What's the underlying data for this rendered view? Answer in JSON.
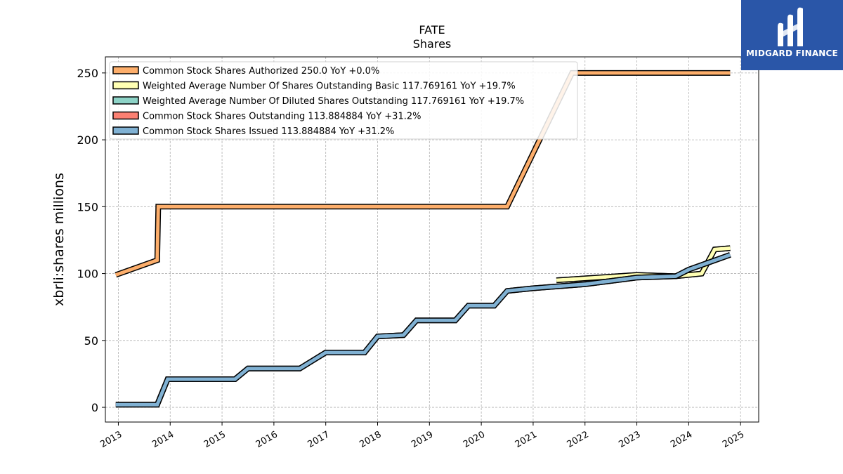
{
  "chart_data": {
    "type": "line",
    "title": "FATE",
    "subtitle": "Shares",
    "ylabel": "xbrli:shares millions",
    "xlabel": "",
    "xlim": [
      2012.75,
      2025.35
    ],
    "ylim": [
      -11,
      262
    ],
    "yticks": [
      0,
      50,
      100,
      150,
      200,
      250
    ],
    "xticks": [
      2013,
      2014,
      2015,
      2016,
      2017,
      2018,
      2019,
      2020,
      2021,
      2022,
      2023,
      2024,
      2025
    ],
    "xtick_labels": [
      "2013",
      "2014",
      "2015",
      "2016",
      "2017",
      "2018",
      "2019",
      "2020",
      "2021",
      "2022",
      "2023",
      "2024",
      "2025"
    ],
    "grid": true,
    "legend_position": "top-left",
    "series": [
      {
        "name": "Common Stock Shares Authorized",
        "legend": "Common Stock Shares Authorized  250.0 YoY +0.0%",
        "color": "#fdae6b",
        "x": [
          2012.95,
          2013.75,
          2013.77,
          2020.5,
          2021.75,
          2024.8
        ],
        "y": [
          99,
          110,
          150,
          150,
          250,
          250
        ]
      },
      {
        "name": "Weighted Average Number Of Shares Outstanding Basic",
        "legend": "Weighted Average Number Of Shares Outstanding Basic  117.769161 YoY +19.7%",
        "color": "#ffffb3",
        "x": [
          2021.45,
          2023.0,
          2023.75,
          2024.25,
          2024.5,
          2024.8
        ],
        "y": [
          95,
          99,
          98,
          100,
          118,
          119
        ]
      },
      {
        "name": "Weighted Average Number Of Diluted Shares Outstanding",
        "legend": "Weighted Average Number Of Diluted Shares Outstanding  117.769161 YoY +19.7%",
        "color": "#8dd3c7",
        "x": [
          2021.45,
          2023.0,
          2023.75,
          2024.25,
          2024.5,
          2024.8
        ],
        "y": [
          95,
          99,
          98,
          100,
          118,
          119
        ]
      },
      {
        "name": "Common Stock Shares Outstanding",
        "legend": "Common Stock Shares Outstanding  113.884884 YoY +31.2%",
        "color": "#fb8072",
        "x": [
          2012.95,
          2013.75,
          2013.95,
          2014.95,
          2015.25,
          2015.5,
          2016.5,
          2016.75,
          2017.0,
          2017.75,
          2018.0,
          2018.5,
          2018.75,
          2019.5,
          2019.75,
          2020.25,
          2020.5,
          2021.0,
          2022.0,
          2023.0,
          2023.75,
          2024.0,
          2024.8
        ],
        "y": [
          2,
          2,
          21,
          21,
          21,
          29,
          29,
          35,
          41,
          41,
          53,
          54,
          65,
          65,
          76,
          76,
          87,
          89,
          92,
          97,
          98,
          103,
          114
        ]
      },
      {
        "name": "Common Stock Shares Issued",
        "legend": "Common Stock Shares Issued  113.884884 YoY +31.2%",
        "color": "#80b1d3",
        "x": [
          2012.95,
          2013.75,
          2013.95,
          2014.95,
          2015.25,
          2015.5,
          2016.5,
          2016.75,
          2017.0,
          2017.75,
          2018.0,
          2018.5,
          2018.75,
          2019.5,
          2019.75,
          2020.25,
          2020.5,
          2021.0,
          2022.0,
          2023.0,
          2023.75,
          2024.0,
          2024.8
        ],
        "y": [
          2,
          2,
          21,
          21,
          21,
          29,
          29,
          35,
          41,
          41,
          53,
          54,
          65,
          65,
          76,
          76,
          87,
          89,
          92,
          97,
          98,
          103,
          114
        ]
      }
    ]
  },
  "logo": {
    "text": "MIDGARD FINANCE",
    "background": "#2a56a8"
  }
}
